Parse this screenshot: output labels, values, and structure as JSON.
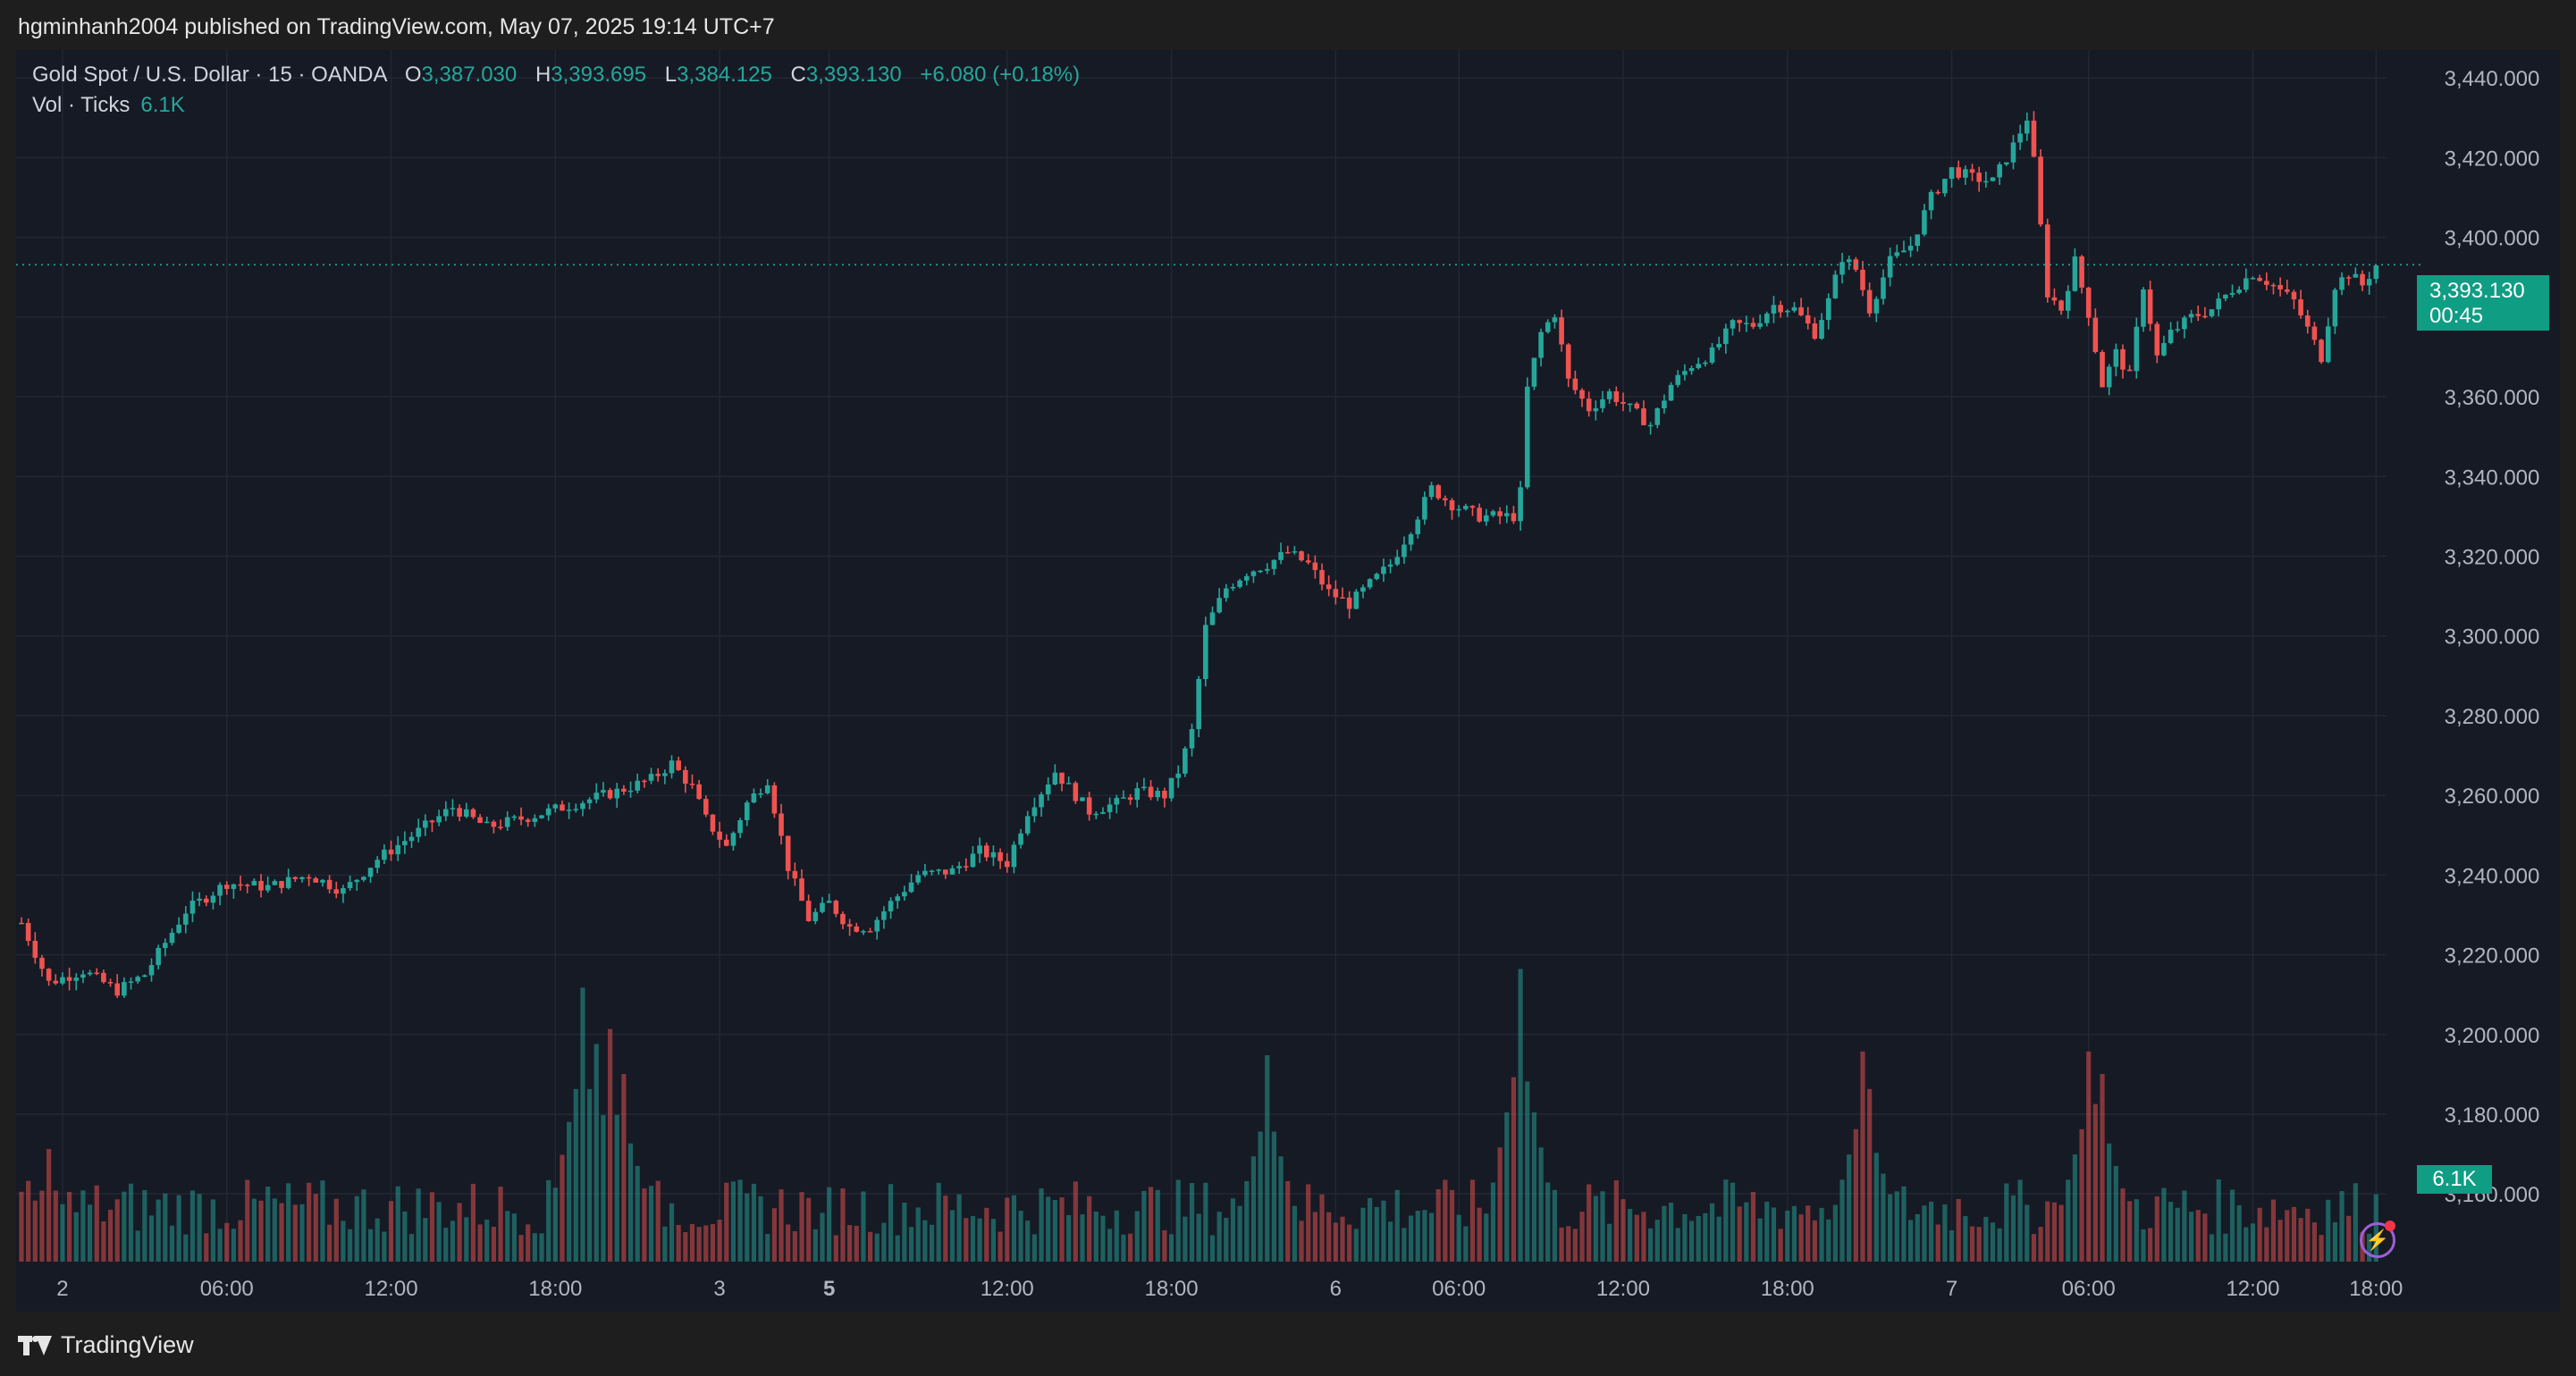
{
  "header": {
    "published_by": "hgminhanh2004 published on TradingView.com, May 07, 2025 19:14 UTC+7"
  },
  "legend": {
    "symbol": "Gold Spot / U.S. Dollar · 15 · OANDA",
    "open_label": "O",
    "open": "3,387.030",
    "high_label": "H",
    "high": "3,393.695",
    "low_label": "L",
    "low": "3,384.125",
    "close_label": "C",
    "close": "3,393.130",
    "change": "+6.080 (+0.18%)",
    "volume_label": "Vol · Ticks",
    "volume": "6.1K"
  },
  "price_tag": {
    "price": "3,393.130",
    "countdown": "00:45"
  },
  "volume_tag": "6.1K",
  "footer": {
    "brand": "TradingView"
  },
  "colors": {
    "background": "#161a25",
    "grid": "#232733",
    "up": "#26a69a",
    "down": "#ef5350",
    "price_tag": "#0f9d84"
  },
  "icons": {
    "brand": "tradingview-logo-icon",
    "alert": "lightning-icon"
  },
  "chart_data": {
    "type": "candlestick",
    "title": "Gold Spot / U.S. Dollar · 15 · OANDA",
    "x_tick_labels": [
      "2",
      "06:00",
      "12:00",
      "18:00",
      "3",
      "5",
      "12:00",
      "18:00",
      "6",
      "06:00",
      "12:00",
      "18:00",
      "7",
      "06:00",
      "12:00",
      "18:00"
    ],
    "y_tick_labels": [
      "3,440.000",
      "3,420.000",
      "3,400.000",
      "3,380.000",
      "3,360.000",
      "3,340.000",
      "3,320.000",
      "3,300.000",
      "3,280.000",
      "3,260.000",
      "3,240.000",
      "3,220.000",
      "3,200.000",
      "3,180.000",
      "3,160.000"
    ],
    "y_ticks": [
      3440,
      3420,
      3400,
      3380,
      3360,
      3340,
      3320,
      3300,
      3280,
      3260,
      3240,
      3220,
      3200,
      3180,
      3160
    ],
    "ylim": [
      3143,
      3447
    ],
    "grid": true,
    "last_price_line": 3393.13,
    "close_path": [
      [
        0,
        3228
      ],
      [
        4,
        3213
      ],
      [
        9,
        3216
      ],
      [
        14,
        3211
      ],
      [
        18,
        3215
      ],
      [
        24,
        3231
      ],
      [
        30,
        3238
      ],
      [
        36,
        3237
      ],
      [
        42,
        3240
      ],
      [
        47,
        3236
      ],
      [
        52,
        3244
      ],
      [
        58,
        3251
      ],
      [
        63,
        3257
      ],
      [
        68,
        3252
      ],
      [
        75,
        3255
      ],
      [
        81,
        3258
      ],
      [
        87,
        3261
      ],
      [
        92,
        3264
      ],
      [
        95,
        3268
      ],
      [
        98,
        3262
      ],
      [
        100,
        3254
      ],
      [
        103,
        3247
      ],
      [
        106,
        3258
      ],
      [
        109,
        3264
      ],
      [
        112,
        3242
      ],
      [
        115,
        3229
      ],
      [
        118,
        3233
      ],
      [
        121,
        3227
      ],
      [
        124,
        3227
      ],
      [
        127,
        3233
      ],
      [
        131,
        3240
      ],
      [
        136,
        3241
      ],
      [
        140,
        3246
      ],
      [
        144,
        3243
      ],
      [
        147,
        3256
      ],
      [
        151,
        3266
      ],
      [
        153,
        3262
      ],
      [
        156,
        3256
      ],
      [
        160,
        3258
      ],
      [
        163,
        3261
      ],
      [
        167,
        3260
      ],
      [
        169,
        3266
      ],
      [
        171,
        3276
      ],
      [
        173,
        3302
      ],
      [
        176,
        3312
      ],
      [
        179,
        3316
      ],
      [
        182,
        3318
      ],
      [
        185,
        3321
      ],
      [
        188,
        3318
      ],
      [
        191,
        3311
      ],
      [
        194,
        3308
      ],
      [
        197,
        3313
      ],
      [
        200,
        3318
      ],
      [
        203,
        3327
      ],
      [
        206,
        3337
      ],
      [
        209,
        3333
      ],
      [
        213,
        3330
      ],
      [
        216,
        3330
      ],
      [
        218,
        3330
      ],
      [
        219,
        3336
      ],
      [
        220,
        3362
      ],
      [
        222,
        3376
      ],
      [
        224,
        3381
      ],
      [
        226,
        3364
      ],
      [
        229,
        3357
      ],
      [
        232,
        3361
      ],
      [
        235,
        3357
      ],
      [
        238,
        3353
      ],
      [
        241,
        3363
      ],
      [
        244,
        3368
      ],
      [
        247,
        3371
      ],
      [
        250,
        3378
      ],
      [
        253,
        3378
      ],
      [
        256,
        3383
      ],
      [
        259,
        3382
      ],
      [
        262,
        3376
      ],
      [
        264,
        3384
      ],
      [
        266,
        3395
      ],
      [
        268,
        3392
      ],
      [
        270,
        3382
      ],
      [
        273,
        3394
      ],
      [
        276,
        3398
      ],
      [
        279,
        3410
      ],
      [
        282,
        3417
      ],
      [
        285,
        3415
      ],
      [
        288,
        3414
      ],
      [
        291,
        3423
      ],
      [
        293,
        3430
      ],
      [
        294,
        3419
      ],
      [
        296,
        3386
      ],
      [
        298,
        3382
      ],
      [
        300,
        3394
      ],
      [
        302,
        3381
      ],
      [
        304,
        3363
      ],
      [
        306,
        3371
      ],
      [
        308,
        3365
      ],
      [
        310,
        3388
      ],
      [
        312,
        3370
      ],
      [
        314,
        3376
      ],
      [
        317,
        3380
      ],
      [
        320,
        3382
      ],
      [
        323,
        3387
      ],
      [
        326,
        3391
      ],
      [
        329,
        3388
      ],
      [
        332,
        3384
      ],
      [
        334,
        3377
      ],
      [
        336,
        3370
      ],
      [
        338,
        3388
      ],
      [
        340,
        3391
      ],
      [
        342,
        3388
      ],
      [
        344,
        3393
      ]
    ],
    "n_bars": 345,
    "volume": {
      "label": "Vol · Ticks",
      "last": "6.1K",
      "spikes": [
        [
          4,
          3.0
        ],
        [
          36,
          2.0
        ],
        [
          82,
          7.3
        ],
        [
          84,
          5.8
        ],
        [
          86,
          6.2
        ],
        [
          88,
          5.0
        ],
        [
          101,
          1.0
        ],
        [
          117,
          1.3
        ],
        [
          182,
          5.5
        ],
        [
          219,
          7.8
        ],
        [
          220,
          4.8
        ],
        [
          269,
          5.6
        ],
        [
          270,
          4.6
        ],
        [
          302,
          5.6
        ],
        [
          303,
          4.2
        ],
        [
          304,
          5.0
        ]
      ]
    }
  }
}
